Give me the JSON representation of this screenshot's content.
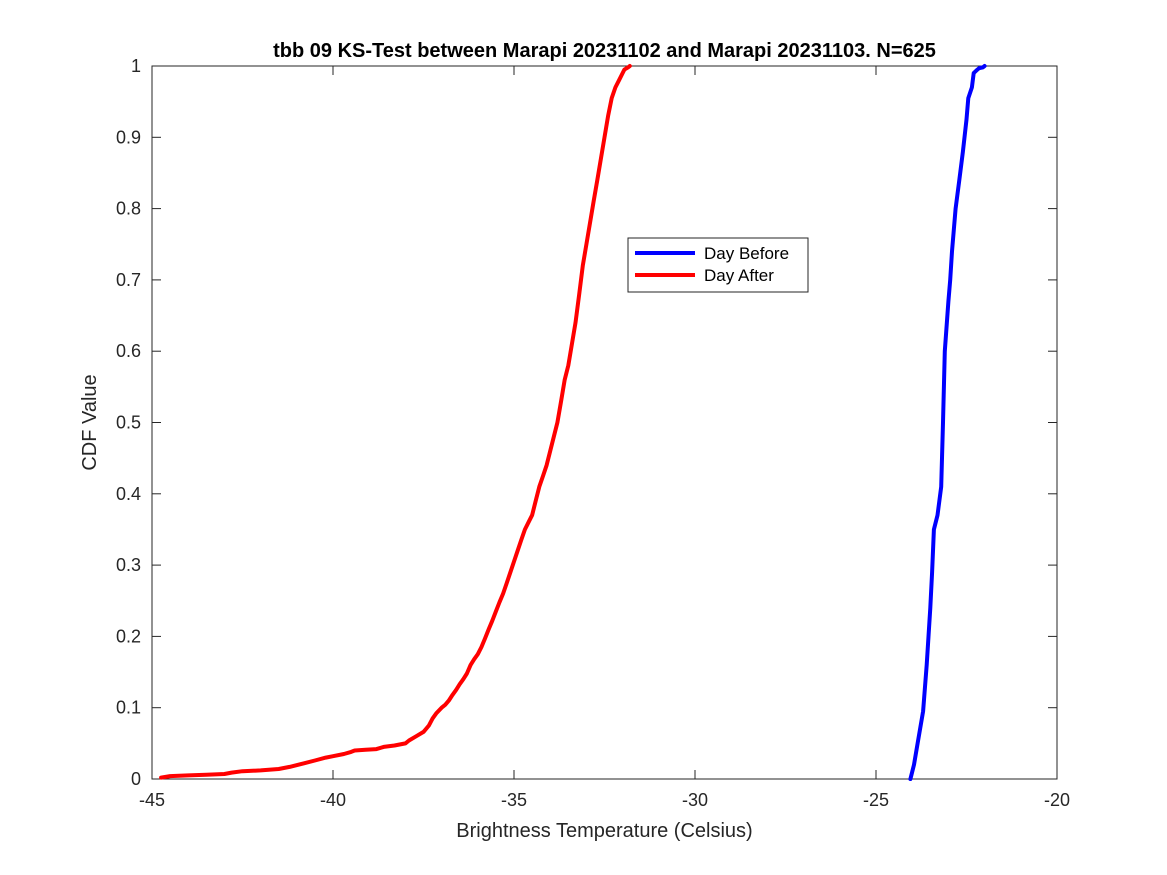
{
  "chart_data": {
    "type": "line",
    "title": "tbb 09 KS-Test between Marapi 20231102 and Marapi 20231103. N=625",
    "xlabel": "Brightness Temperature (Celsius)",
    "ylabel": "CDF Value",
    "xlim": [
      -45,
      -20
    ],
    "ylim": [
      0,
      1
    ],
    "xticks": [
      -45,
      -40,
      -35,
      -30,
      -25,
      -20
    ],
    "xtick_labels": [
      "-45",
      "-40",
      "-35",
      "-30",
      "-25",
      "-20"
    ],
    "yticks": [
      0,
      0.1,
      0.2,
      0.3,
      0.4,
      0.5,
      0.6,
      0.7,
      0.8,
      0.9,
      1
    ],
    "ytick_labels": [
      "0",
      "0.1",
      "0.2",
      "0.3",
      "0.4",
      "0.5",
      "0.6",
      "0.7",
      "0.8",
      "0.9",
      "1"
    ],
    "grid": false,
    "legend_position": "upper-center-right",
    "series": [
      {
        "name": "Day Before",
        "color": "#0000ff",
        "x": [
          -24.05,
          -24.0,
          -23.95,
          -23.85,
          -23.7,
          -23.6,
          -23.5,
          -23.45,
          -23.4,
          -23.3,
          -23.2,
          -23.15,
          -23.1,
          -23.0,
          -22.95,
          -22.9,
          -22.85,
          -22.8,
          -22.7,
          -22.6,
          -22.5,
          -22.45,
          -22.35,
          -22.3,
          -22.2,
          -22.15,
          -22.05,
          -22.0
        ],
        "y": [
          0.0,
          0.01,
          0.02,
          0.05,
          0.095,
          0.16,
          0.24,
          0.29,
          0.35,
          0.37,
          0.41,
          0.5,
          0.6,
          0.67,
          0.7,
          0.74,
          0.77,
          0.8,
          0.84,
          0.88,
          0.925,
          0.955,
          0.97,
          0.99,
          0.995,
          0.997,
          0.998,
          1.0
        ]
      },
      {
        "name": "Day After",
        "color": "#ff0000",
        "x": [
          -44.75,
          -44.5,
          -44.0,
          -43.5,
          -43.0,
          -42.8,
          -42.5,
          -42.0,
          -41.5,
          -41.2,
          -40.8,
          -40.5,
          -40.2,
          -40.0,
          -39.7,
          -39.5,
          -39.4,
          -39.1,
          -38.8,
          -38.6,
          -38.3,
          -38.0,
          -37.9,
          -37.7,
          -37.5,
          -37.35,
          -37.25,
          -37.15,
          -37.0,
          -36.9,
          -36.8,
          -36.7,
          -36.6,
          -36.5,
          -36.4,
          -36.3,
          -36.2,
          -36.1,
          -36.0,
          -35.9,
          -35.8,
          -35.7,
          -35.6,
          -35.5,
          -35.4,
          -35.3,
          -35.2,
          -35.1,
          -35.0,
          -34.9,
          -34.8,
          -34.7,
          -34.6,
          -34.5,
          -34.4,
          -34.3,
          -34.2,
          -34.1,
          -34.0,
          -33.9,
          -33.8,
          -33.7,
          -33.6,
          -33.5,
          -33.4,
          -33.3,
          -33.2,
          -33.1,
          -33.0,
          -32.9,
          -32.8,
          -32.7,
          -32.6,
          -32.5,
          -32.4,
          -32.3,
          -32.2,
          -32.1,
          -32.0,
          -31.95,
          -31.85,
          -31.8
        ],
        "y": [
          0.002,
          0.004,
          0.005,
          0.006,
          0.007,
          0.009,
          0.011,
          0.012,
          0.014,
          0.017,
          0.022,
          0.026,
          0.03,
          0.032,
          0.035,
          0.038,
          0.04,
          0.041,
          0.042,
          0.045,
          0.047,
          0.05,
          0.054,
          0.06,
          0.066,
          0.075,
          0.085,
          0.092,
          0.1,
          0.104,
          0.11,
          0.118,
          0.125,
          0.133,
          0.14,
          0.148,
          0.16,
          0.168,
          0.175,
          0.185,
          0.197,
          0.21,
          0.222,
          0.235,
          0.248,
          0.26,
          0.275,
          0.29,
          0.305,
          0.32,
          0.335,
          0.35,
          0.36,
          0.37,
          0.39,
          0.41,
          0.425,
          0.44,
          0.46,
          0.48,
          0.5,
          0.53,
          0.56,
          0.58,
          0.61,
          0.64,
          0.68,
          0.72,
          0.75,
          0.78,
          0.81,
          0.84,
          0.87,
          0.9,
          0.93,
          0.955,
          0.97,
          0.98,
          0.99,
          0.995,
          0.998,
          1.0
        ]
      }
    ]
  }
}
